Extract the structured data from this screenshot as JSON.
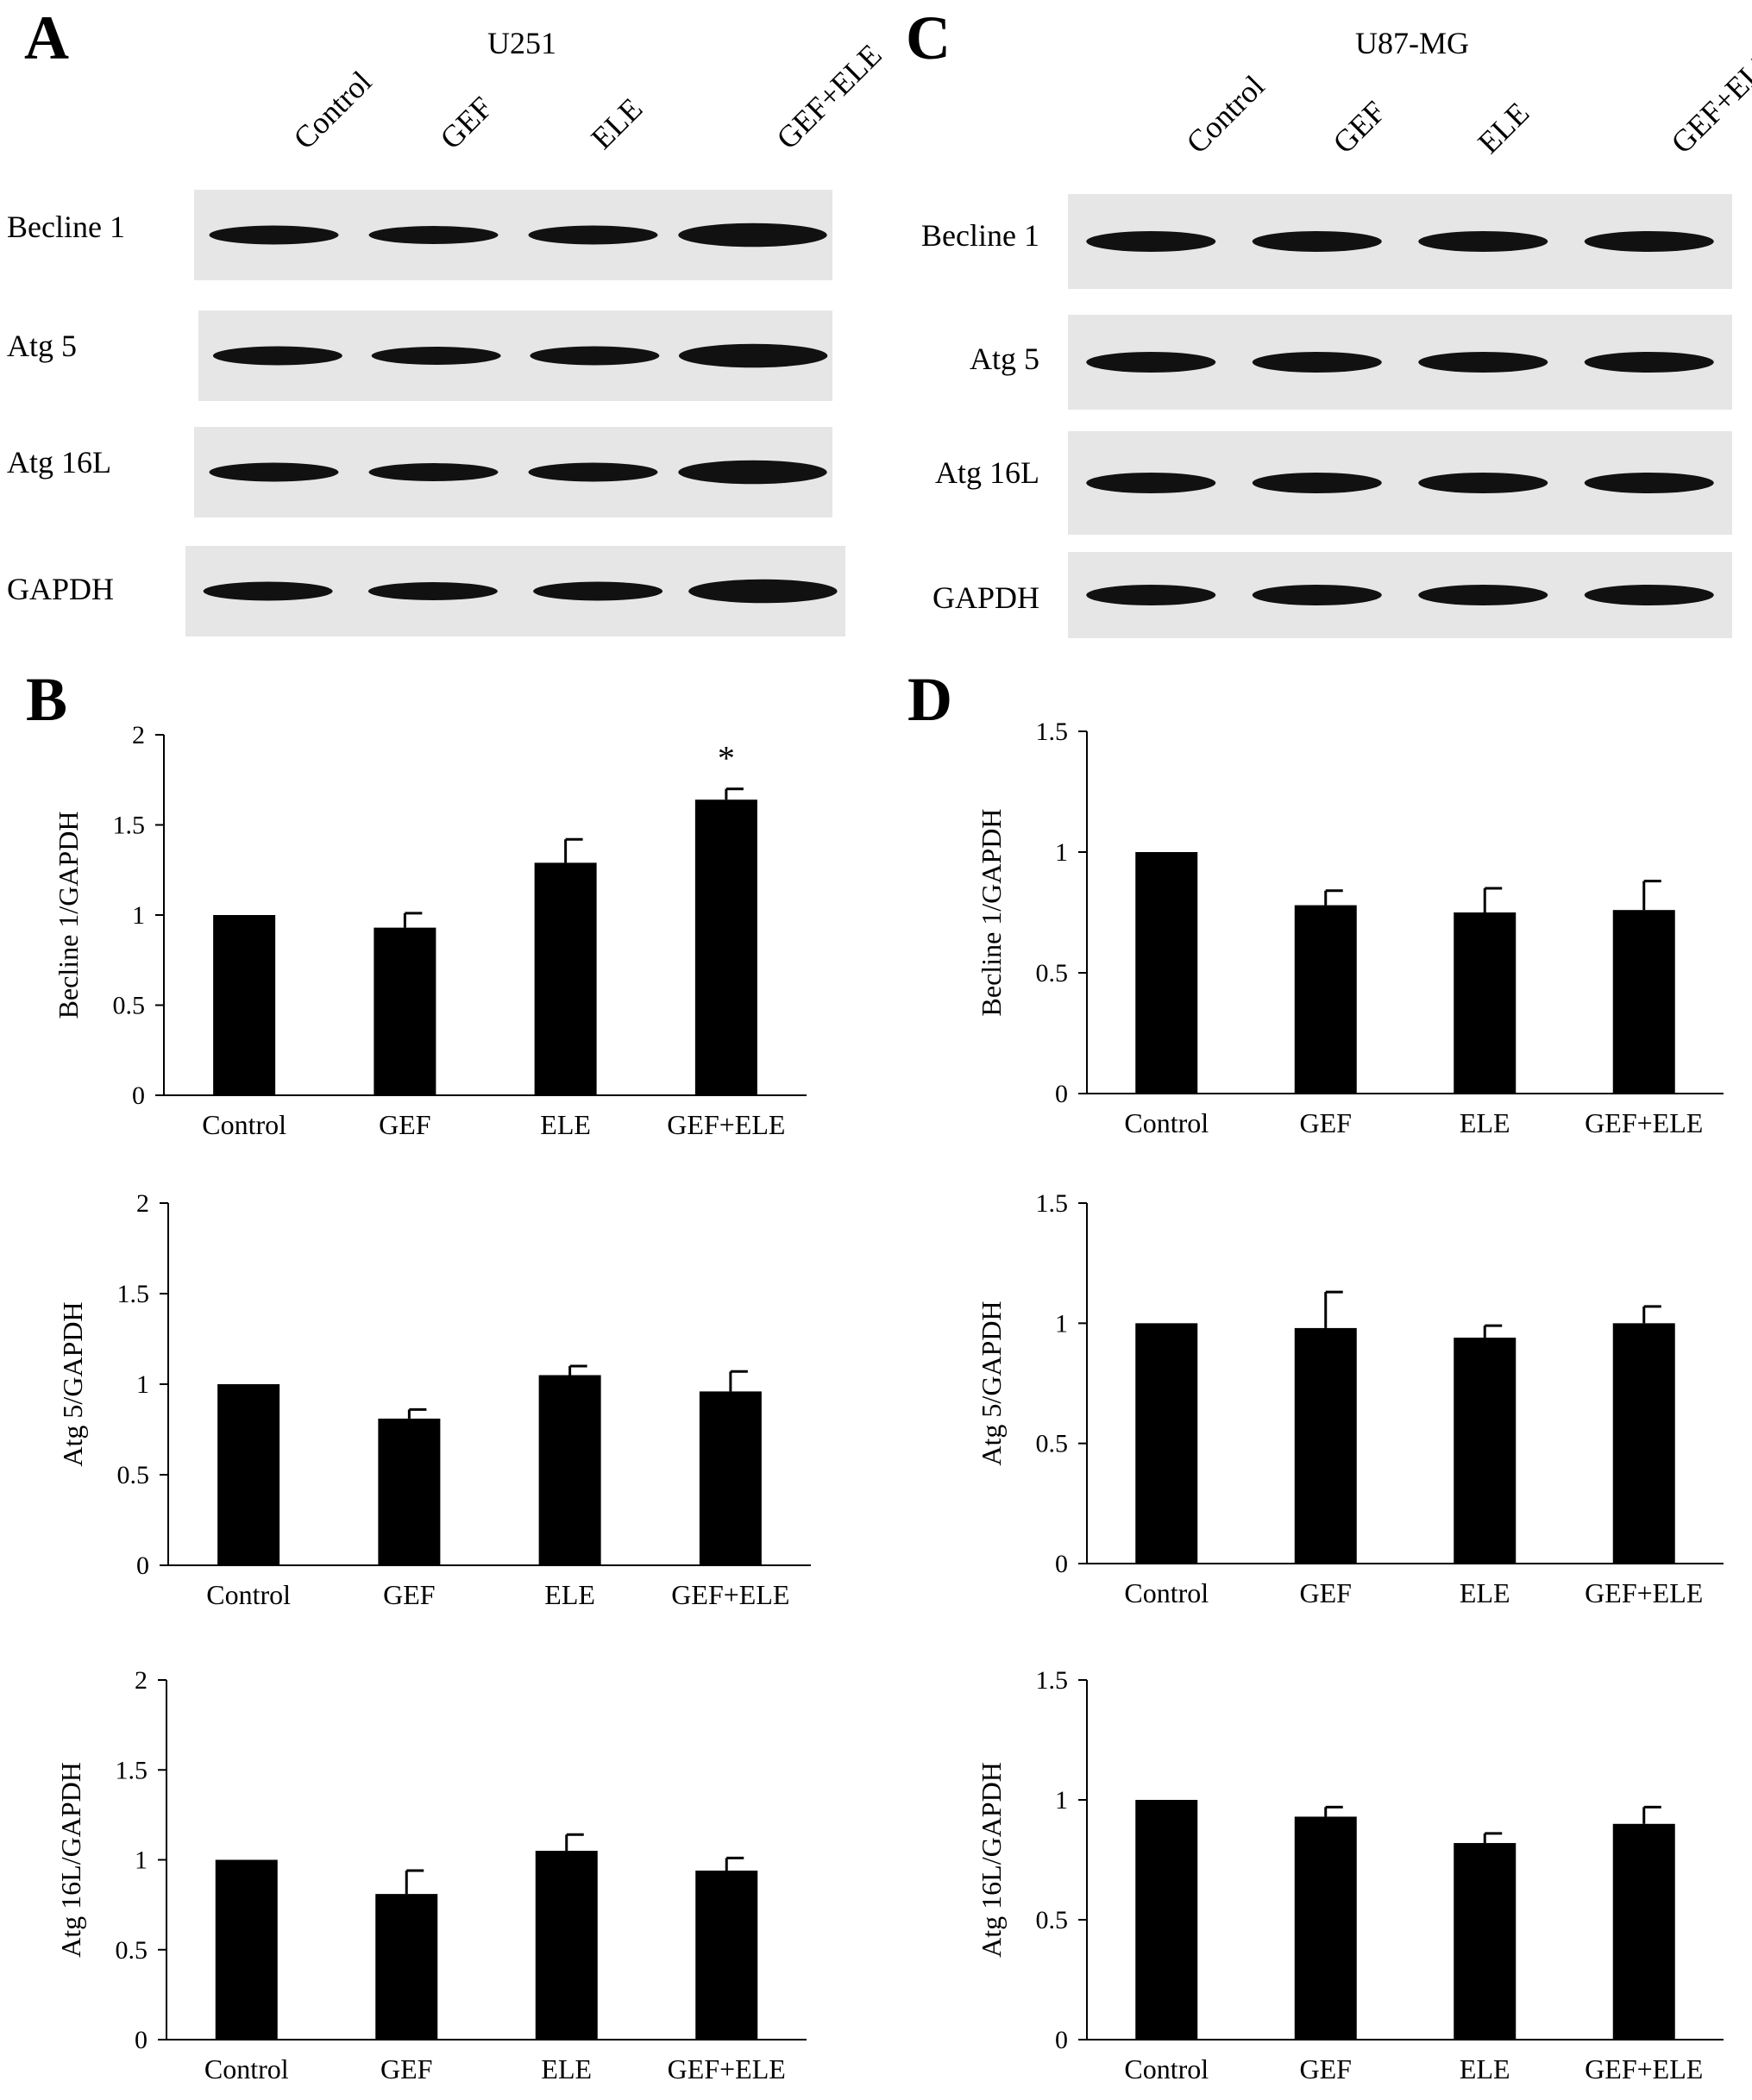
{
  "panels": {
    "A": "A",
    "B": "B",
    "C": "C",
    "D": "D"
  },
  "western_blots": [
    {
      "panel": "A",
      "cell_line": "U251",
      "lanes": [
        "Control",
        "GEF",
        "ELE",
        "GEF+ELE"
      ],
      "proteins": [
        "Becline 1",
        "Atg 5",
        "Atg 16L",
        "GAPDH"
      ]
    },
    {
      "panel": "C",
      "cell_line": "U87-MG",
      "lanes": [
        "Control",
        "GEF",
        "ELE",
        "GEF+ELE"
      ],
      "proteins": [
        "Becline 1",
        "Atg 5",
        "Atg 16L",
        "GAPDH"
      ]
    }
  ],
  "chart_data": [
    {
      "panel": "B",
      "type": "bar",
      "categories": [
        "Control",
        "GEF",
        "ELE",
        "GEF+ELE"
      ],
      "values": [
        1.0,
        0.93,
        1.29,
        1.64
      ],
      "errors": [
        0,
        0.08,
        0.13,
        0.06
      ],
      "significance": [
        "",
        "",
        "",
        "*"
      ],
      "ylabel": "Becline 1/GAPDH",
      "ylim": [
        0,
        2
      ],
      "yticks": [
        "0",
        "0.5",
        "1",
        "1.5",
        "2"
      ],
      "color": "#000000"
    },
    {
      "panel": "B",
      "type": "bar",
      "categories": [
        "Control",
        "GEF",
        "ELE",
        "GEF+ELE"
      ],
      "values": [
        1.0,
        0.81,
        1.05,
        0.96
      ],
      "errors": [
        0,
        0.05,
        0.05,
        0.11
      ],
      "significance": [
        "",
        "",
        "",
        ""
      ],
      "ylabel": "Atg 5/GAPDH",
      "ylim": [
        0,
        2
      ],
      "yticks": [
        "0",
        "0.5",
        "1",
        "1.5",
        "2"
      ],
      "color": "#000000"
    },
    {
      "panel": "B",
      "type": "bar",
      "categories": [
        "Control",
        "GEF",
        "ELE",
        "GEF+ELE"
      ],
      "values": [
        1.0,
        0.81,
        1.05,
        0.94
      ],
      "errors": [
        0,
        0.13,
        0.09,
        0.07
      ],
      "significance": [
        "",
        "",
        "",
        ""
      ],
      "ylabel": "Atg 16L/GAPDH",
      "ylim": [
        0,
        2
      ],
      "yticks": [
        "0",
        "0.5",
        "1",
        "1.5",
        "2"
      ],
      "color": "#000000"
    },
    {
      "panel": "D",
      "type": "bar",
      "categories": [
        "Control",
        "GEF",
        "ELE",
        "GEF+ELE"
      ],
      "values": [
        1.0,
        0.78,
        0.75,
        0.76
      ],
      "errors": [
        0,
        0.06,
        0.1,
        0.12
      ],
      "significance": [
        "",
        "",
        "",
        ""
      ],
      "ylabel": "Becline 1/GAPDH",
      "ylim": [
        0,
        1.5
      ],
      "yticks": [
        "0",
        "0.5",
        "1",
        "1.5"
      ],
      "color": "#000000"
    },
    {
      "panel": "D",
      "type": "bar",
      "categories": [
        "Control",
        "GEF",
        "ELE",
        "GEF+ELE"
      ],
      "values": [
        1.0,
        0.98,
        0.94,
        1.0
      ],
      "errors": [
        0,
        0.15,
        0.05,
        0.07
      ],
      "significance": [
        "",
        "",
        "",
        ""
      ],
      "ylabel": "Atg 5/GAPDH",
      "ylim": [
        0,
        1.5
      ],
      "yticks": [
        "0",
        "0.5",
        "1",
        "1.5"
      ],
      "color": "#000000"
    },
    {
      "panel": "D",
      "type": "bar",
      "categories": [
        "Control",
        "GEF",
        "ELE",
        "GEF+ELE"
      ],
      "values": [
        1.0,
        0.93,
        0.82,
        0.9
      ],
      "errors": [
        0,
        0.04,
        0.04,
        0.07
      ],
      "significance": [
        "",
        "",
        "",
        ""
      ],
      "ylabel": "Atg 16L/GAPDH",
      "ylim": [
        0,
        1.5
      ],
      "yticks": [
        "0",
        "0.5",
        "1",
        "1.5"
      ],
      "color": "#000000"
    }
  ]
}
